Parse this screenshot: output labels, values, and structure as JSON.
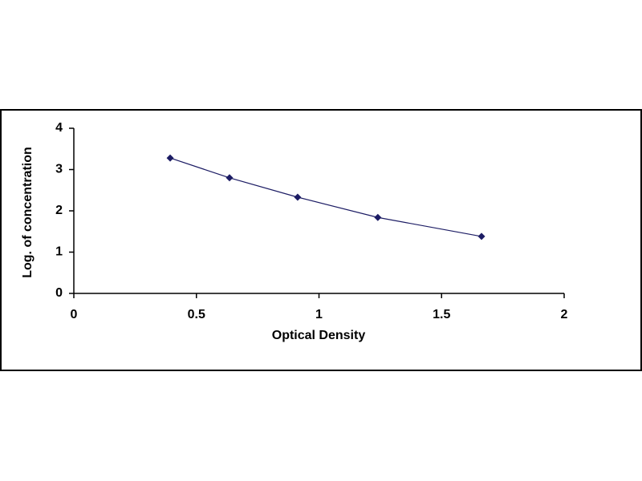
{
  "chart_data": {
    "type": "scatter",
    "line": true,
    "x_label": "Optical Density",
    "y_label": "Log. of concentration",
    "series": [
      {
        "color": "#1c1c64",
        "x": [
          0.393,
          0.635,
          0.913,
          1.24,
          1.663
        ],
        "values": [
          3.28,
          2.8,
          2.33,
          1.84,
          1.38
        ]
      }
    ],
    "xlim": [
      0,
      2
    ],
    "xticks": [
      0,
      0.5,
      1,
      1.5,
      2
    ],
    "ylim": [
      0,
      4
    ],
    "yticks": [
      0,
      1,
      2,
      3,
      4
    ],
    "grid": false
  }
}
